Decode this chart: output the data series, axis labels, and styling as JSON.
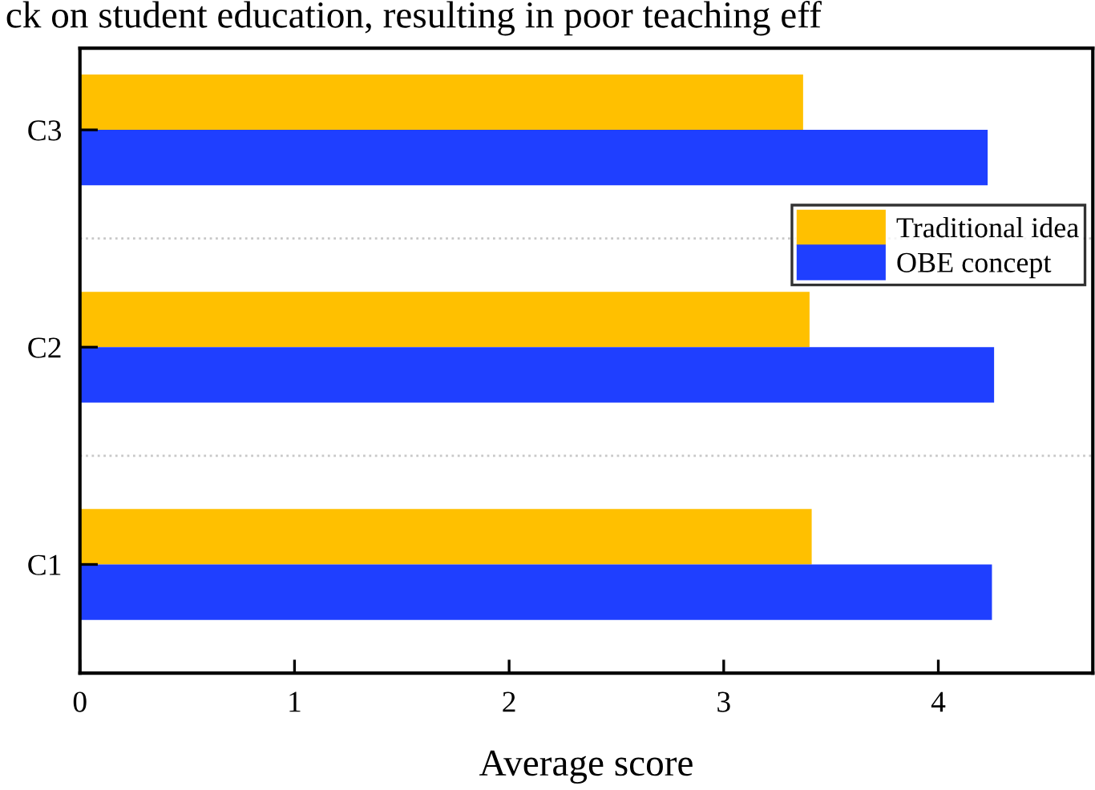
{
  "chart_data": {
    "type": "bar",
    "orientation": "horizontal",
    "xlabel": "Average score",
    "annotations": [
      "ck on student education, resulting in poor teaching eff"
    ],
    "categories": [
      "C3",
      "C2",
      "C1"
    ],
    "series": [
      {
        "name": "Traditional idea",
        "color": "#ffc000",
        "values": [
          3.37,
          3.4,
          3.41
        ]
      },
      {
        "name": "OBE concept",
        "color": "#1f3fff",
        "values": [
          4.23,
          4.26,
          4.25
        ]
      }
    ],
    "xlim": [
      0,
      4.72
    ],
    "xticks": [
      0,
      1,
      2,
      3,
      4
    ],
    "grid": "y",
    "legend": "right"
  }
}
